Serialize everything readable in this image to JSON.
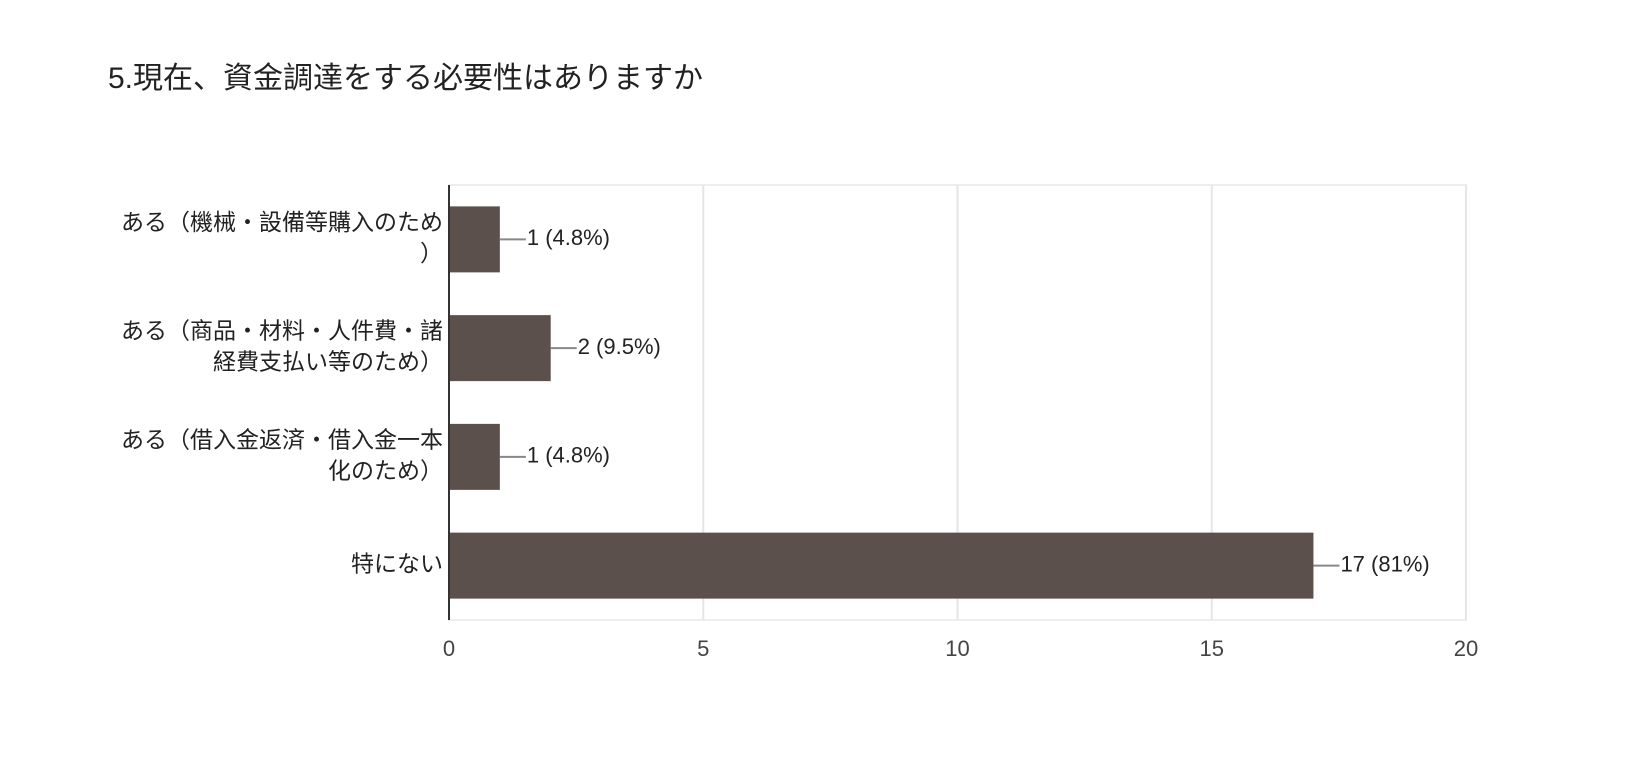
{
  "chart_data": {
    "type": "barh",
    "title": "5.現在、資金調達をする必要性はありますか",
    "categories": [
      "ある（機械・設備等購入のため）",
      "ある（商品・材料・人件費・諸経費支払い等のため）",
      "ある（借入金返済・借入金一本化のため）",
      "特にない"
    ],
    "values": [
      1,
      2,
      1,
      17
    ],
    "value_labels": [
      "1 (4.8%)",
      "2 (9.5%)",
      "1 (4.8%)",
      "17 (81%)"
    ],
    "color": "#5b504c",
    "xlim": [
      0,
      20
    ],
    "xticks": [
      0,
      5,
      10,
      15,
      20
    ],
    "grid": true
  }
}
